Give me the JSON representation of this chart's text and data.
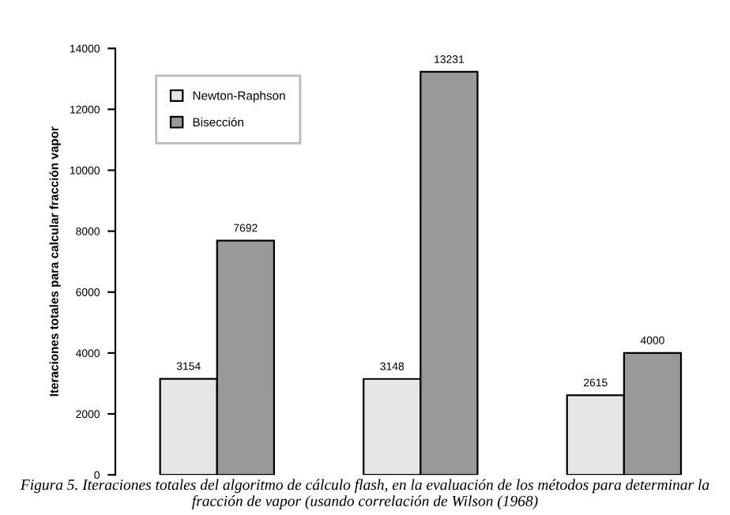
{
  "chart_data": {
    "type": "bar",
    "categories": [
      null,
      null,
      null
    ],
    "ylabel": "Iteraciones totales para calcular fracción vapor",
    "series": [
      {
        "name": "Newton-Raphson",
        "color": "#e6e6e6",
        "values": [
          3154,
          3148,
          2615
        ]
      },
      {
        "name": "Bisección",
        "color": "#999999",
        "values": [
          7692,
          13231,
          4000
        ]
      }
    ],
    "ylim": [
      0,
      14000
    ],
    "yticks": [
      0,
      2000,
      4000,
      6000,
      8000,
      10000,
      12000,
      14000
    ],
    "data_labels": true,
    "grid": false,
    "legend": "top left",
    "annotations": [
      "Figura 5. Iteraciones totales del algoritmo de cálculo flash, en la evaluación de los métodos para determinar la fracción de vapor (usando correlación de Wilson (1968)"
    ]
  }
}
